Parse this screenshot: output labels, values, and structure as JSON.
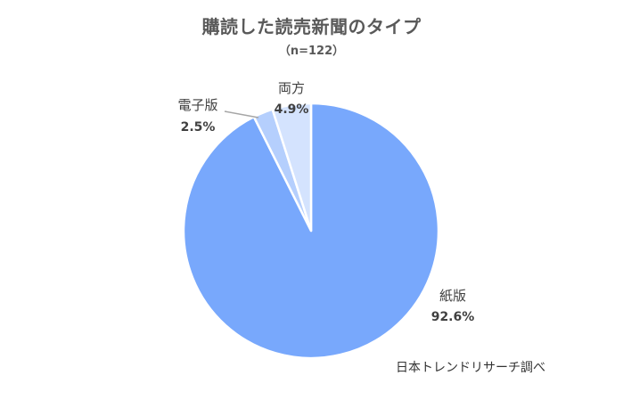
{
  "chart_data": {
    "type": "pie",
    "title": "購読した読売新聞のタイプ",
    "subtitle": "（n=122）",
    "slices": [
      {
        "label": "紙版",
        "value": 92.6,
        "value_label": "92.6%",
        "color": "#78a8fc"
      },
      {
        "label": "電子版",
        "value": 2.5,
        "value_label": "2.5%",
        "color": "#b5cffd"
      },
      {
        "label": "両方",
        "value": 4.9,
        "value_label": "4.9%",
        "color": "#d4e3fe"
      }
    ],
    "start_angle": "12 o'clock",
    "direction": "clockwise",
    "legend": "none"
  },
  "source": "日本トレンドリサーチ調べ"
}
